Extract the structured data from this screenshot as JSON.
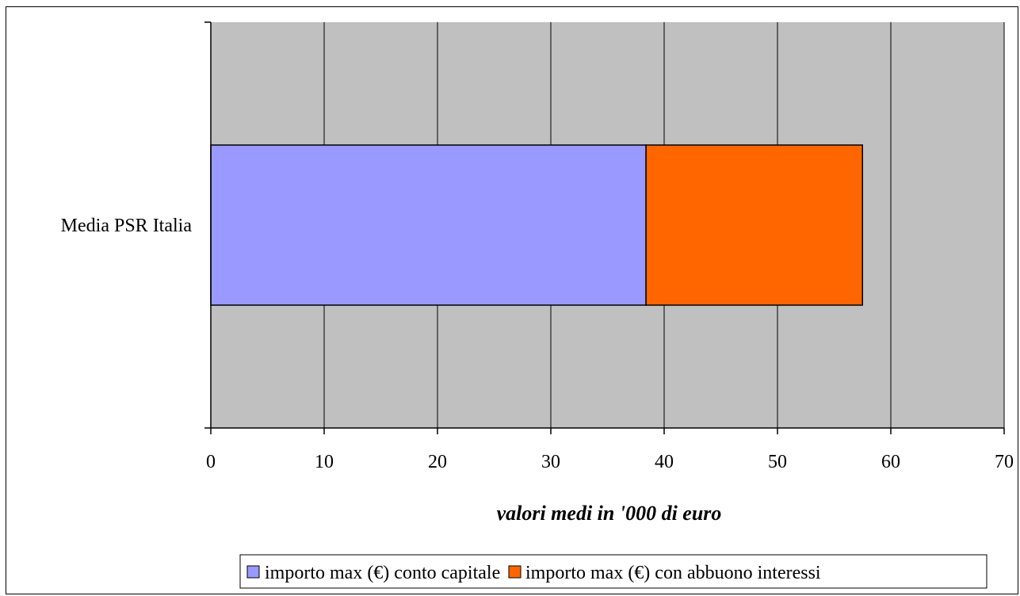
{
  "chart_data": {
    "type": "bar",
    "orientation": "horizontal",
    "stacked": true,
    "categories": [
      "Media PSR Italia"
    ],
    "series": [
      {
        "name": "importo max (€) conto capitale",
        "values": [
          38.4
        ],
        "color": "#9999ff"
      },
      {
        "name": "importo max (€) con abbuono interessi",
        "values": [
          19.1
        ],
        "color": "#ff6600"
      }
    ],
    "xlabel": "valori medi in '000 di euro",
    "xlim": [
      0,
      70
    ],
    "xticks": [
      "0",
      "10",
      "20",
      "30",
      "40",
      "50",
      "60",
      "70"
    ],
    "grid": true,
    "plot_background": "#c0c0c0",
    "legend_position": "bottom"
  }
}
